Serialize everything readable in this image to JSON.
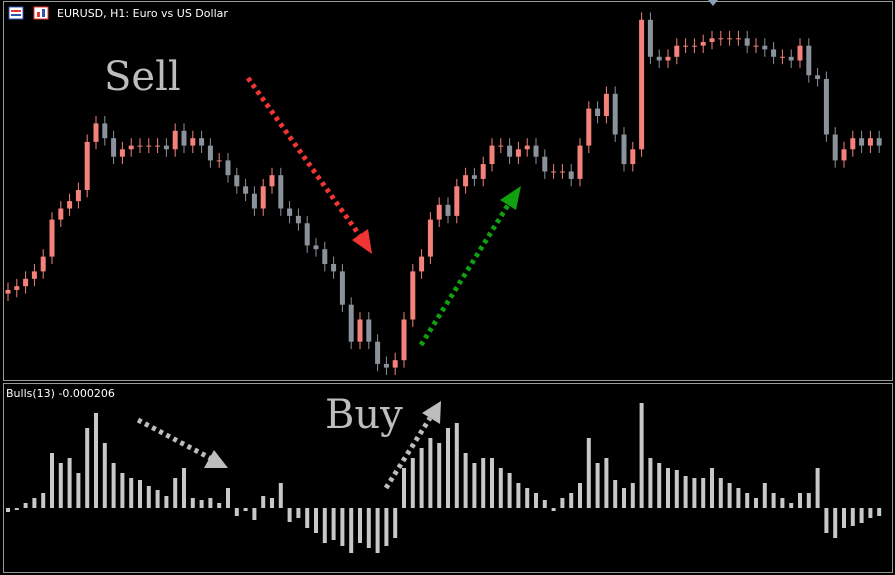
{
  "header": {
    "title": "EURUSD, H1:  Euro vs US Dollar"
  },
  "annotations": [
    "Sell",
    "Buy"
  ],
  "chart_data": [
    {
      "type": "candlestick",
      "ylim": [
        0,
        100
      ],
      "up_color": "#f4827a",
      "down_color": "#8a929b",
      "open": [
        22,
        23,
        24,
        26,
        28,
        32,
        42,
        45,
        47,
        50,
        63,
        68,
        64,
        59,
        61,
        62,
        62,
        62,
        62,
        61,
        66,
        62,
        64,
        62,
        58,
        58,
        54,
        51,
        49,
        45,
        51,
        54,
        45,
        43,
        41,
        35,
        34,
        30,
        28,
        19,
        9,
        15,
        9,
        3,
        2,
        4,
        15,
        28,
        32,
        42,
        46,
        43,
        51,
        54,
        53,
        57,
        62,
        62,
        59,
        61,
        62,
        59,
        55,
        55,
        55,
        53,
        62,
        72,
        70,
        76,
        65,
        57,
        61,
        96,
        86,
        85,
        86,
        89,
        89,
        89,
        90,
        91,
        91,
        91,
        91,
        89,
        89,
        88,
        86,
        86,
        85,
        89,
        81,
        80,
        65,
        58,
        61,
        64,
        62,
        64
      ],
      "high": [
        25,
        26,
        28,
        30,
        34,
        44,
        47,
        49,
        52,
        65,
        70,
        70,
        66,
        63,
        64,
        64,
        64,
        64,
        64,
        68,
        68,
        66,
        66,
        64,
        60,
        60,
        56,
        53,
        51,
        53,
        56,
        56,
        47,
        45,
        43,
        37,
        36,
        32,
        30,
        21,
        17,
        17,
        11,
        5,
        6,
        17,
        30,
        34,
        44,
        48,
        48,
        53,
        56,
        56,
        59,
        64,
        64,
        64,
        63,
        64,
        64,
        61,
        57,
        57,
        57,
        64,
        74,
        74,
        78,
        78,
        67,
        63,
        98,
        98,
        88,
        88,
        91,
        91,
        91,
        92,
        93,
        93,
        93,
        93,
        93,
        91,
        91,
        90,
        88,
        88,
        91,
        91,
        83,
        82,
        67,
        63,
        66,
        66,
        66,
        66
      ],
      "low": [
        20,
        21,
        22,
        24,
        26,
        30,
        40,
        43,
        45,
        48,
        61,
        62,
        57,
        57,
        59,
        60,
        60,
        60,
        59,
        59,
        60,
        60,
        60,
        56,
        56,
        52,
        49,
        47,
        43,
        43,
        49,
        43,
        41,
        39,
        33,
        32,
        28,
        26,
        17,
        7,
        7,
        7,
        1,
        0,
        0,
        2,
        13,
        26,
        30,
        40,
        41,
        41,
        49,
        51,
        51,
        55,
        60,
        57,
        57,
        59,
        57,
        53,
        53,
        53,
        51,
        51,
        60,
        68,
        68,
        63,
        55,
        55,
        59,
        84,
        83,
        83,
        84,
        87,
        87,
        87,
        88,
        89,
        89,
        89,
        87,
        87,
        86,
        84,
        84,
        83,
        83,
        79,
        78,
        63,
        56,
        56,
        59,
        60,
        60,
        60
      ],
      "close": [
        23,
        24,
        26,
        28,
        32,
        42,
        45,
        47,
        50,
        63,
        68,
        64,
        59,
        61,
        62,
        62,
        62,
        62,
        61,
        66,
        62,
        64,
        62,
        58,
        58,
        54,
        51,
        49,
        45,
        51,
        54,
        45,
        43,
        41,
        35,
        34,
        30,
        28,
        19,
        9,
        15,
        9,
        3,
        2,
        4,
        15,
        28,
        32,
        42,
        46,
        43,
        51,
        54,
        53,
        57,
        62,
        62,
        59,
        61,
        62,
        59,
        55,
        55,
        55,
        53,
        62,
        72,
        70,
        76,
        65,
        57,
        61,
        96,
        86,
        85,
        86,
        89,
        89,
        89,
        90,
        91,
        91,
        91,
        91,
        89,
        89,
        88,
        86,
        86,
        85,
        89,
        81,
        80,
        65,
        58,
        61,
        64,
        62,
        64,
        62
      ]
    },
    {
      "type": "bar",
      "title": "Bulls(13) -0.000206",
      "ylim": [
        -50,
        110
      ],
      "color": "#c8c8c8",
      "values": [
        -4,
        -2,
        5,
        10,
        15,
        55,
        45,
        50,
        35,
        80,
        95,
        65,
        45,
        35,
        30,
        28,
        22,
        18,
        12,
        30,
        40,
        10,
        8,
        10,
        5,
        20,
        -8,
        -3,
        -12,
        12,
        10,
        25,
        -14,
        -10,
        -20,
        -25,
        -35,
        -32,
        -38,
        -45,
        -35,
        -40,
        -45,
        -38,
        -30,
        40,
        50,
        60,
        70,
        65,
        80,
        85,
        55,
        45,
        50,
        50,
        40,
        35,
        25,
        20,
        15,
        8,
        -3,
        10,
        15,
        25,
        70,
        45,
        50,
        28,
        20,
        25,
        105,
        50,
        45,
        40,
        38,
        32,
        30,
        30,
        40,
        30,
        25,
        20,
        15,
        10,
        25,
        15,
        10,
        5,
        15,
        15,
        40,
        -25,
        -30,
        -20,
        -18,
        -15,
        -10,
        -8
      ]
    }
  ]
}
